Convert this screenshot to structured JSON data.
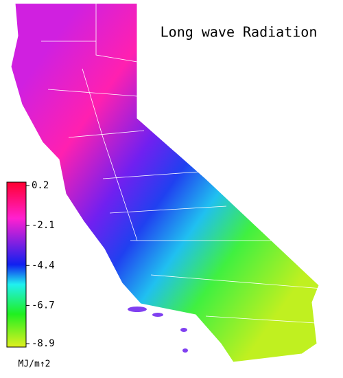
{
  "title": "Long wave Radiation",
  "legend": {
    "ticks": [
      0.2,
      -2.1,
      -4.4,
      -6.7,
      -8.9
    ],
    "unit": "MJ/m↑2"
  }
}
